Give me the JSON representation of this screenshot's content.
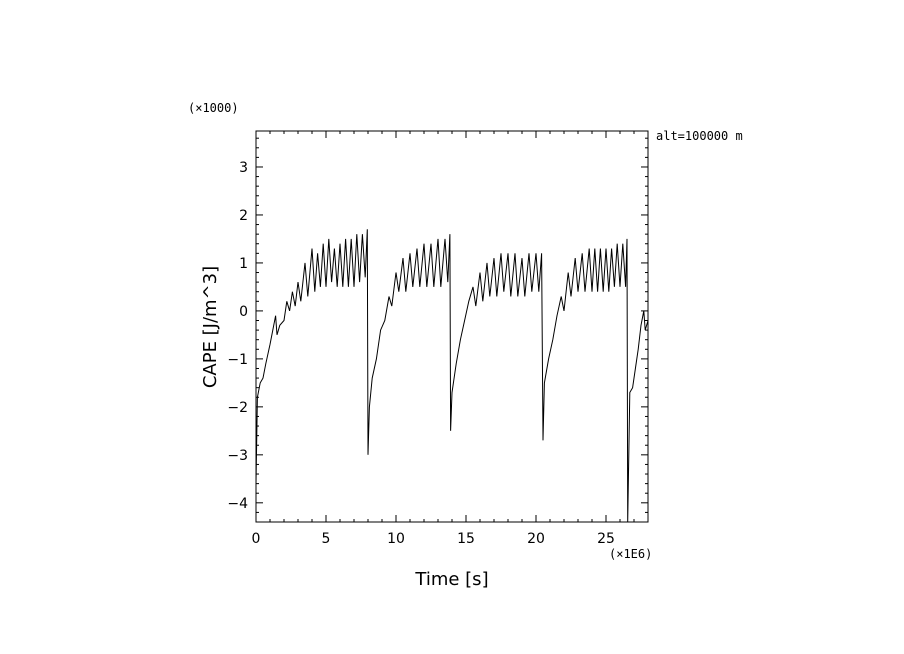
{
  "chart_data": {
    "type": "line",
    "title": "",
    "xlabel": "Time [s]",
    "ylabel": "CAPE [J/m^3]",
    "x_multiplier_label": "(×1E6)",
    "y_multiplier_label": "(×1000)",
    "annotation": "alt=100000 m",
    "xlim": [
      0,
      28
    ],
    "ylim": [
      -4.4,
      3.75
    ],
    "x_ticks": [
      0,
      5,
      10,
      15,
      20,
      25
    ],
    "y_ticks": [
      -4,
      -3,
      -2,
      -1,
      0,
      1,
      2,
      3
    ],
    "x_tick_labels": [
      "0",
      "5",
      "10",
      "15",
      "20",
      "25"
    ],
    "y_tick_labels": [
      "−4",
      "−3",
      "−2",
      "−1",
      "0",
      "1",
      "2",
      "3"
    ],
    "grid": false,
    "line_color": "#000000",
    "series": [
      {
        "values": [
          [
            0.0,
            -3.6
          ],
          [
            0.1,
            -1.8
          ],
          [
            0.3,
            -1.5
          ],
          [
            0.5,
            -1.4
          ],
          [
            0.7,
            -1.1
          ],
          [
            1.0,
            -0.7
          ],
          [
            1.2,
            -0.4
          ],
          [
            1.4,
            -0.1
          ],
          [
            1.5,
            -0.5
          ],
          [
            1.7,
            -0.3
          ],
          [
            2.0,
            -0.2
          ],
          [
            2.2,
            0.2
          ],
          [
            2.4,
            0.0
          ],
          [
            2.6,
            0.4
          ],
          [
            2.8,
            0.1
          ],
          [
            3.0,
            0.6
          ],
          [
            3.2,
            0.2
          ],
          [
            3.5,
            1.0
          ],
          [
            3.7,
            0.3
          ],
          [
            4.0,
            1.3
          ],
          [
            4.2,
            0.4
          ],
          [
            4.4,
            1.2
          ],
          [
            4.6,
            0.5
          ],
          [
            4.8,
            1.4
          ],
          [
            5.0,
            0.5
          ],
          [
            5.2,
            1.5
          ],
          [
            5.4,
            0.6
          ],
          [
            5.6,
            1.3
          ],
          [
            5.8,
            0.5
          ],
          [
            6.0,
            1.4
          ],
          [
            6.2,
            0.5
          ],
          [
            6.4,
            1.5
          ],
          [
            6.6,
            0.5
          ],
          [
            6.8,
            1.5
          ],
          [
            7.0,
            0.5
          ],
          [
            7.2,
            1.6
          ],
          [
            7.4,
            0.6
          ],
          [
            7.6,
            1.6
          ],
          [
            7.8,
            0.7
          ],
          [
            7.95,
            1.7
          ],
          [
            8.0,
            -3.0
          ],
          [
            8.1,
            -2.0
          ],
          [
            8.3,
            -1.4
          ],
          [
            8.6,
            -1.0
          ],
          [
            8.9,
            -0.4
          ],
          [
            9.2,
            -0.2
          ],
          [
            9.5,
            0.3
          ],
          [
            9.7,
            0.1
          ],
          [
            10.0,
            0.8
          ],
          [
            10.2,
            0.4
          ],
          [
            10.5,
            1.1
          ],
          [
            10.7,
            0.4
          ],
          [
            11.0,
            1.2
          ],
          [
            11.2,
            0.5
          ],
          [
            11.5,
            1.3
          ],
          [
            11.7,
            0.5
          ],
          [
            12.0,
            1.4
          ],
          [
            12.2,
            0.5
          ],
          [
            12.5,
            1.4
          ],
          [
            12.7,
            0.5
          ],
          [
            13.0,
            1.5
          ],
          [
            13.2,
            0.5
          ],
          [
            13.5,
            1.5
          ],
          [
            13.7,
            0.6
          ],
          [
            13.85,
            1.6
          ],
          [
            13.9,
            -2.5
          ],
          [
            14.0,
            -1.7
          ],
          [
            14.3,
            -1.1
          ],
          [
            14.6,
            -0.6
          ],
          [
            14.9,
            -0.2
          ],
          [
            15.2,
            0.2
          ],
          [
            15.5,
            0.5
          ],
          [
            15.7,
            0.1
          ],
          [
            16.0,
            0.8
          ],
          [
            16.2,
            0.2
          ],
          [
            16.5,
            1.0
          ],
          [
            16.7,
            0.3
          ],
          [
            17.0,
            1.1
          ],
          [
            17.2,
            0.3
          ],
          [
            17.5,
            1.2
          ],
          [
            17.7,
            0.4
          ],
          [
            18.0,
            1.2
          ],
          [
            18.2,
            0.3
          ],
          [
            18.5,
            1.2
          ],
          [
            18.7,
            0.3
          ],
          [
            19.0,
            1.1
          ],
          [
            19.2,
            0.3
          ],
          [
            19.5,
            1.2
          ],
          [
            19.7,
            0.4
          ],
          [
            20.0,
            1.2
          ],
          [
            20.2,
            0.4
          ],
          [
            20.4,
            1.2
          ],
          [
            20.5,
            -2.7
          ],
          [
            20.6,
            -1.5
          ],
          [
            20.9,
            -1.0
          ],
          [
            21.2,
            -0.6
          ],
          [
            21.5,
            -0.1
          ],
          [
            21.8,
            0.3
          ],
          [
            22.0,
            0.0
          ],
          [
            22.3,
            0.8
          ],
          [
            22.5,
            0.3
          ],
          [
            22.8,
            1.1
          ],
          [
            23.0,
            0.4
          ],
          [
            23.3,
            1.2
          ],
          [
            23.5,
            0.4
          ],
          [
            23.8,
            1.3
          ],
          [
            24.0,
            0.4
          ],
          [
            24.2,
            1.3
          ],
          [
            24.4,
            0.4
          ],
          [
            24.6,
            1.3
          ],
          [
            24.8,
            0.4
          ],
          [
            25.0,
            1.3
          ],
          [
            25.2,
            0.4
          ],
          [
            25.4,
            1.3
          ],
          [
            25.6,
            0.5
          ],
          [
            25.8,
            1.4
          ],
          [
            26.0,
            0.5
          ],
          [
            26.2,
            1.4
          ],
          [
            26.4,
            0.5
          ],
          [
            26.5,
            1.5
          ],
          [
            26.55,
            -4.4
          ],
          [
            26.7,
            -1.7
          ],
          [
            26.9,
            -1.6
          ],
          [
            27.1,
            -1.2
          ],
          [
            27.3,
            -0.8
          ],
          [
            27.5,
            -0.3
          ],
          [
            27.7,
            0.0
          ],
          [
            27.8,
            -0.4
          ],
          [
            28.0,
            -0.2
          ]
        ]
      }
    ]
  }
}
